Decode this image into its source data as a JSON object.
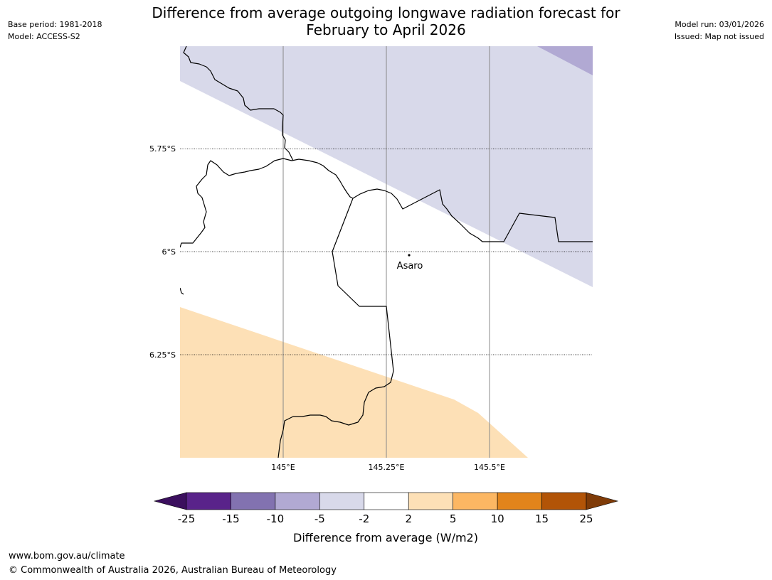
{
  "header": {
    "base_period": "Base period: 1981-2018",
    "model": "Model: ACCESS-S2",
    "title_line1": "Difference from average outgoing longwave radiation forecast for",
    "title_line2": "February to April 2026",
    "model_run": "Model run: 03/01/2026",
    "issued": "Issued: Map not issued"
  },
  "map": {
    "lat_labels": [
      "5.75°S",
      "6°S",
      "6.25°S"
    ],
    "lon_labels": [
      "145°E",
      "145.25°E",
      "145.5°E"
    ],
    "place": {
      "name": "Asaro"
    },
    "colors": {
      "band_purple_light": "#d8d9ea",
      "band_purple_mid": "#b1a9d3",
      "band_orange_light": "#fde0b6",
      "coastline": "#000000"
    }
  },
  "colorbar": {
    "title": "Difference from average (W/m2)",
    "ticks": [
      "-25",
      "-15",
      "-10",
      "-5",
      "-2",
      "2",
      "5",
      "10",
      "15",
      "25"
    ],
    "colors": [
      "#3b0f5e",
      "#59238a",
      "#8272b0",
      "#b1a9d3",
      "#d8d9ea",
      "#ffffff",
      "#fde0b6",
      "#fcb763",
      "#e2841b",
      "#b25407",
      "#7f3b08"
    ]
  },
  "footer": {
    "url": "www.bom.gov.au/climate",
    "copyright": "© Commonwealth of Australia 2026, Australian Bureau of Meteorology"
  }
}
